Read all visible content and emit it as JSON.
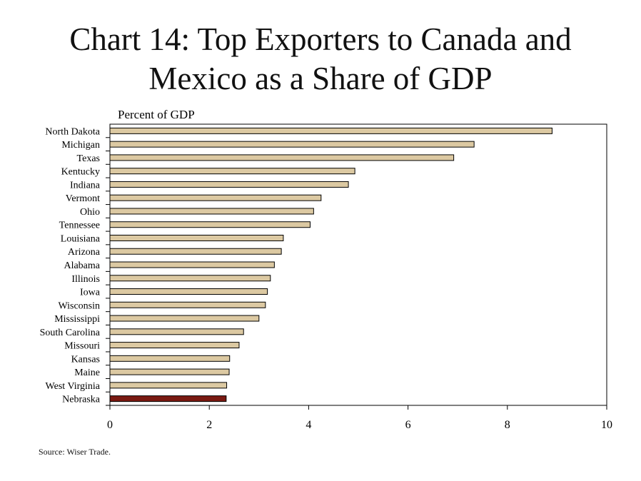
{
  "title_line1": "Chart 14: Top Exporters to Canada and",
  "title_line2": "Mexico as a Share of  GDP",
  "source": "Source: Wiser Trade.",
  "chart_data": {
    "type": "bar",
    "orientation": "horizontal",
    "unit_label": "Percent of  GDP",
    "categories": [
      "North Dakota",
      "Michigan",
      "Texas",
      "Kentucky",
      "Indiana",
      "Vermont",
      "Ohio",
      "Tennessee",
      "Louisiana",
      "Arizona",
      "Alabama",
      "Illinois",
      "Iowa",
      "Wisconsin",
      "Mississippi",
      "South Carolina",
      "Missouri",
      "Kansas",
      "Maine",
      "West Virginia",
      "Nebraska"
    ],
    "values": [
      8.9,
      7.33,
      6.92,
      4.93,
      4.8,
      4.25,
      4.1,
      4.03,
      3.49,
      3.45,
      3.31,
      3.23,
      3.17,
      3.13,
      3.0,
      2.69,
      2.6,
      2.41,
      2.4,
      2.35,
      2.34
    ],
    "highlight": "Nebraska",
    "bar_color": "#dcc9a2",
    "highlight_color": "#7a1a12",
    "xlim": [
      0,
      10
    ],
    "xticks": [
      "0",
      "2",
      "4",
      "6",
      "8",
      "10"
    ],
    "grid": false,
    "legend": "none"
  }
}
